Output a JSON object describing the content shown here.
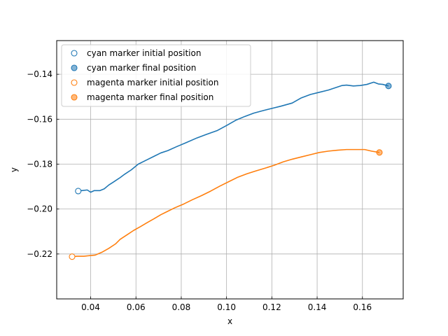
{
  "chart_data": {
    "type": "line",
    "xlabel": "x",
    "ylabel": "y",
    "xlim": [
      0.025,
      0.178
    ],
    "ylim": [
      -0.24,
      -0.125
    ],
    "xticks": [
      0.04,
      0.06,
      0.08,
      0.1,
      0.12,
      0.14,
      0.16
    ],
    "xtick_labels": [
      "0.04",
      "0.06",
      "0.08",
      "0.10",
      "0.12",
      "0.14",
      "0.16"
    ],
    "yticks": [
      -0.22,
      -0.2,
      -0.18,
      -0.16,
      -0.14
    ],
    "ytick_labels": [
      "−0.22",
      "−0.20",
      "−0.18",
      "−0.16",
      "−0.14"
    ],
    "grid": true,
    "legend_position": "top-left",
    "series": [
      {
        "name": "cyan",
        "color": "#1f77b4",
        "x": [
          0.0345,
          0.036,
          0.0385,
          0.04,
          0.0415,
          0.044,
          0.046,
          0.048,
          0.05,
          0.053,
          0.055,
          0.058,
          0.061,
          0.065,
          0.068,
          0.071,
          0.074,
          0.078,
          0.082,
          0.087,
          0.091,
          0.096,
          0.1,
          0.104,
          0.108,
          0.112,
          0.116,
          0.12,
          0.124,
          0.129,
          0.133,
          0.137,
          0.141,
          0.145,
          0.148,
          0.151,
          0.153,
          0.156,
          0.159,
          0.162,
          0.165,
          0.167,
          0.169,
          0.1715
        ],
        "y": [
          -0.192,
          -0.1918,
          -0.1915,
          -0.1925,
          -0.1918,
          -0.1918,
          -0.191,
          -0.1893,
          -0.188,
          -0.186,
          -0.1845,
          -0.1825,
          -0.18,
          -0.178,
          -0.1765,
          -0.175,
          -0.174,
          -0.1722,
          -0.1705,
          -0.1683,
          -0.1668,
          -0.165,
          -0.1628,
          -0.1605,
          -0.1588,
          -0.1573,
          -0.1562,
          -0.1552,
          -0.1542,
          -0.1528,
          -0.1505,
          -0.149,
          -0.148,
          -0.147,
          -0.146,
          -0.145,
          -0.1448,
          -0.1452,
          -0.145,
          -0.1445,
          -0.1435,
          -0.1443,
          -0.1445,
          -0.1452
        ],
        "initial": {
          "x": 0.0345,
          "y": -0.192
        },
        "final": {
          "x": 0.1715,
          "y": -0.1452
        }
      },
      {
        "name": "magenta",
        "color": "#ff7f0e",
        "x": [
          0.0318,
          0.034,
          0.037,
          0.039,
          0.042,
          0.045,
          0.048,
          0.051,
          0.053,
          0.056,
          0.059,
          0.062,
          0.065,
          0.068,
          0.071,
          0.074,
          0.077,
          0.081,
          0.085,
          0.089,
          0.093,
          0.097,
          0.101,
          0.105,
          0.109,
          0.113,
          0.117,
          0.121,
          0.125,
          0.129,
          0.133,
          0.137,
          0.141,
          0.145,
          0.149,
          0.153,
          0.157,
          0.161,
          0.164,
          0.1675
        ],
        "y": [
          -0.2212,
          -0.221,
          -0.221,
          -0.2208,
          -0.2205,
          -0.2192,
          -0.2175,
          -0.2155,
          -0.2135,
          -0.2115,
          -0.2095,
          -0.2078,
          -0.206,
          -0.2043,
          -0.2025,
          -0.201,
          -0.1995,
          -0.1978,
          -0.1958,
          -0.194,
          -0.192,
          -0.1898,
          -0.1878,
          -0.1858,
          -0.1843,
          -0.183,
          -0.1818,
          -0.1805,
          -0.179,
          -0.1778,
          -0.1768,
          -0.1758,
          -0.1748,
          -0.1742,
          -0.1738,
          -0.1735,
          -0.1735,
          -0.1735,
          -0.1742,
          -0.1748
        ],
        "initial": {
          "x": 0.0318,
          "y": -0.2212
        },
        "final": {
          "x": 0.1675,
          "y": -0.1748
        }
      }
    ],
    "legend": [
      {
        "label": "cyan marker initial position",
        "color": "#1f77b4",
        "style": "open-circle"
      },
      {
        "label": "cyan marker final position",
        "color": "#1f77b4",
        "style": "filled-circle"
      },
      {
        "label": "magenta marker initial position",
        "color": "#ff7f0e",
        "style": "open-circle"
      },
      {
        "label": "magenta marker final position",
        "color": "#ff7f0e",
        "style": "filled-circle"
      }
    ]
  }
}
